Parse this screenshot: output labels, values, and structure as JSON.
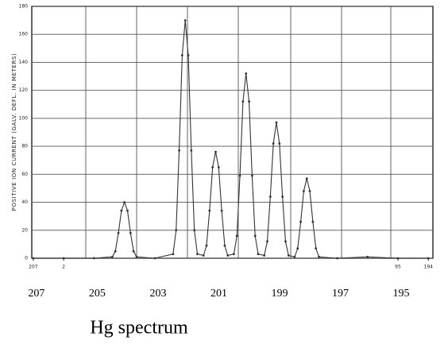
{
  "chart_data": {
    "type": "line",
    "title": "Hg spectrum",
    "ylabel": "POSITIVE ION CURRENT (GALV. DEFL. IN METERS)",
    "x": [
      207,
      206,
      205,
      204.4,
      204.3,
      204.2,
      204.1,
      204,
      203.9,
      203.8,
      203.7,
      203.6,
      203,
      202.4,
      202.3,
      202.2,
      202.1,
      202,
      201.9,
      201.8,
      201.7,
      201.6,
      201.4,
      201.3,
      201.2,
      201.1,
      201,
      200.9,
      200.8,
      200.7,
      200.6,
      200.4,
      200.3,
      200.2,
      200.1,
      200,
      199.9,
      199.8,
      199.7,
      199.6,
      199.4,
      199.3,
      199.2,
      199.1,
      199,
      198.9,
      198.8,
      198.7,
      198.6,
      198.4,
      198.3,
      198.2,
      198.1,
      198,
      197.9,
      197.8,
      197.7,
      197.6,
      197,
      196,
      195,
      194
    ],
    "series": [
      {
        "name": "Hg",
        "color": "#333333",
        "values": [
          0,
          0,
          0,
          1,
          5,
          18,
          34,
          40,
          34,
          18,
          5,
          1,
          0,
          3,
          20,
          77,
          145,
          170,
          145,
          77,
          20,
          3,
          2,
          9,
          34,
          65,
          76,
          65,
          34,
          9,
          2,
          3,
          16,
          59,
          112,
          132,
          112,
          59,
          16,
          3,
          2,
          12,
          44,
          82,
          97,
          82,
          44,
          12,
          2,
          1,
          7,
          26,
          48,
          57,
          48,
          26,
          7,
          1,
          0,
          1,
          0,
          0
        ]
      }
    ],
    "xlim": [
      207.05,
      193.85
    ],
    "xticks": [
      207,
      {
        "value": 206,
        "label": "2"
      },
      {
        "value": 195,
        "label": "95"
      },
      194
    ],
    "mass_labels": [
      207,
      205,
      203,
      201,
      199,
      197,
      195
    ],
    "ylim": [
      0,
      180
    ],
    "yticks": [
      0,
      20,
      40,
      60,
      80,
      100,
      120,
      140,
      160,
      180
    ],
    "grid": true
  }
}
